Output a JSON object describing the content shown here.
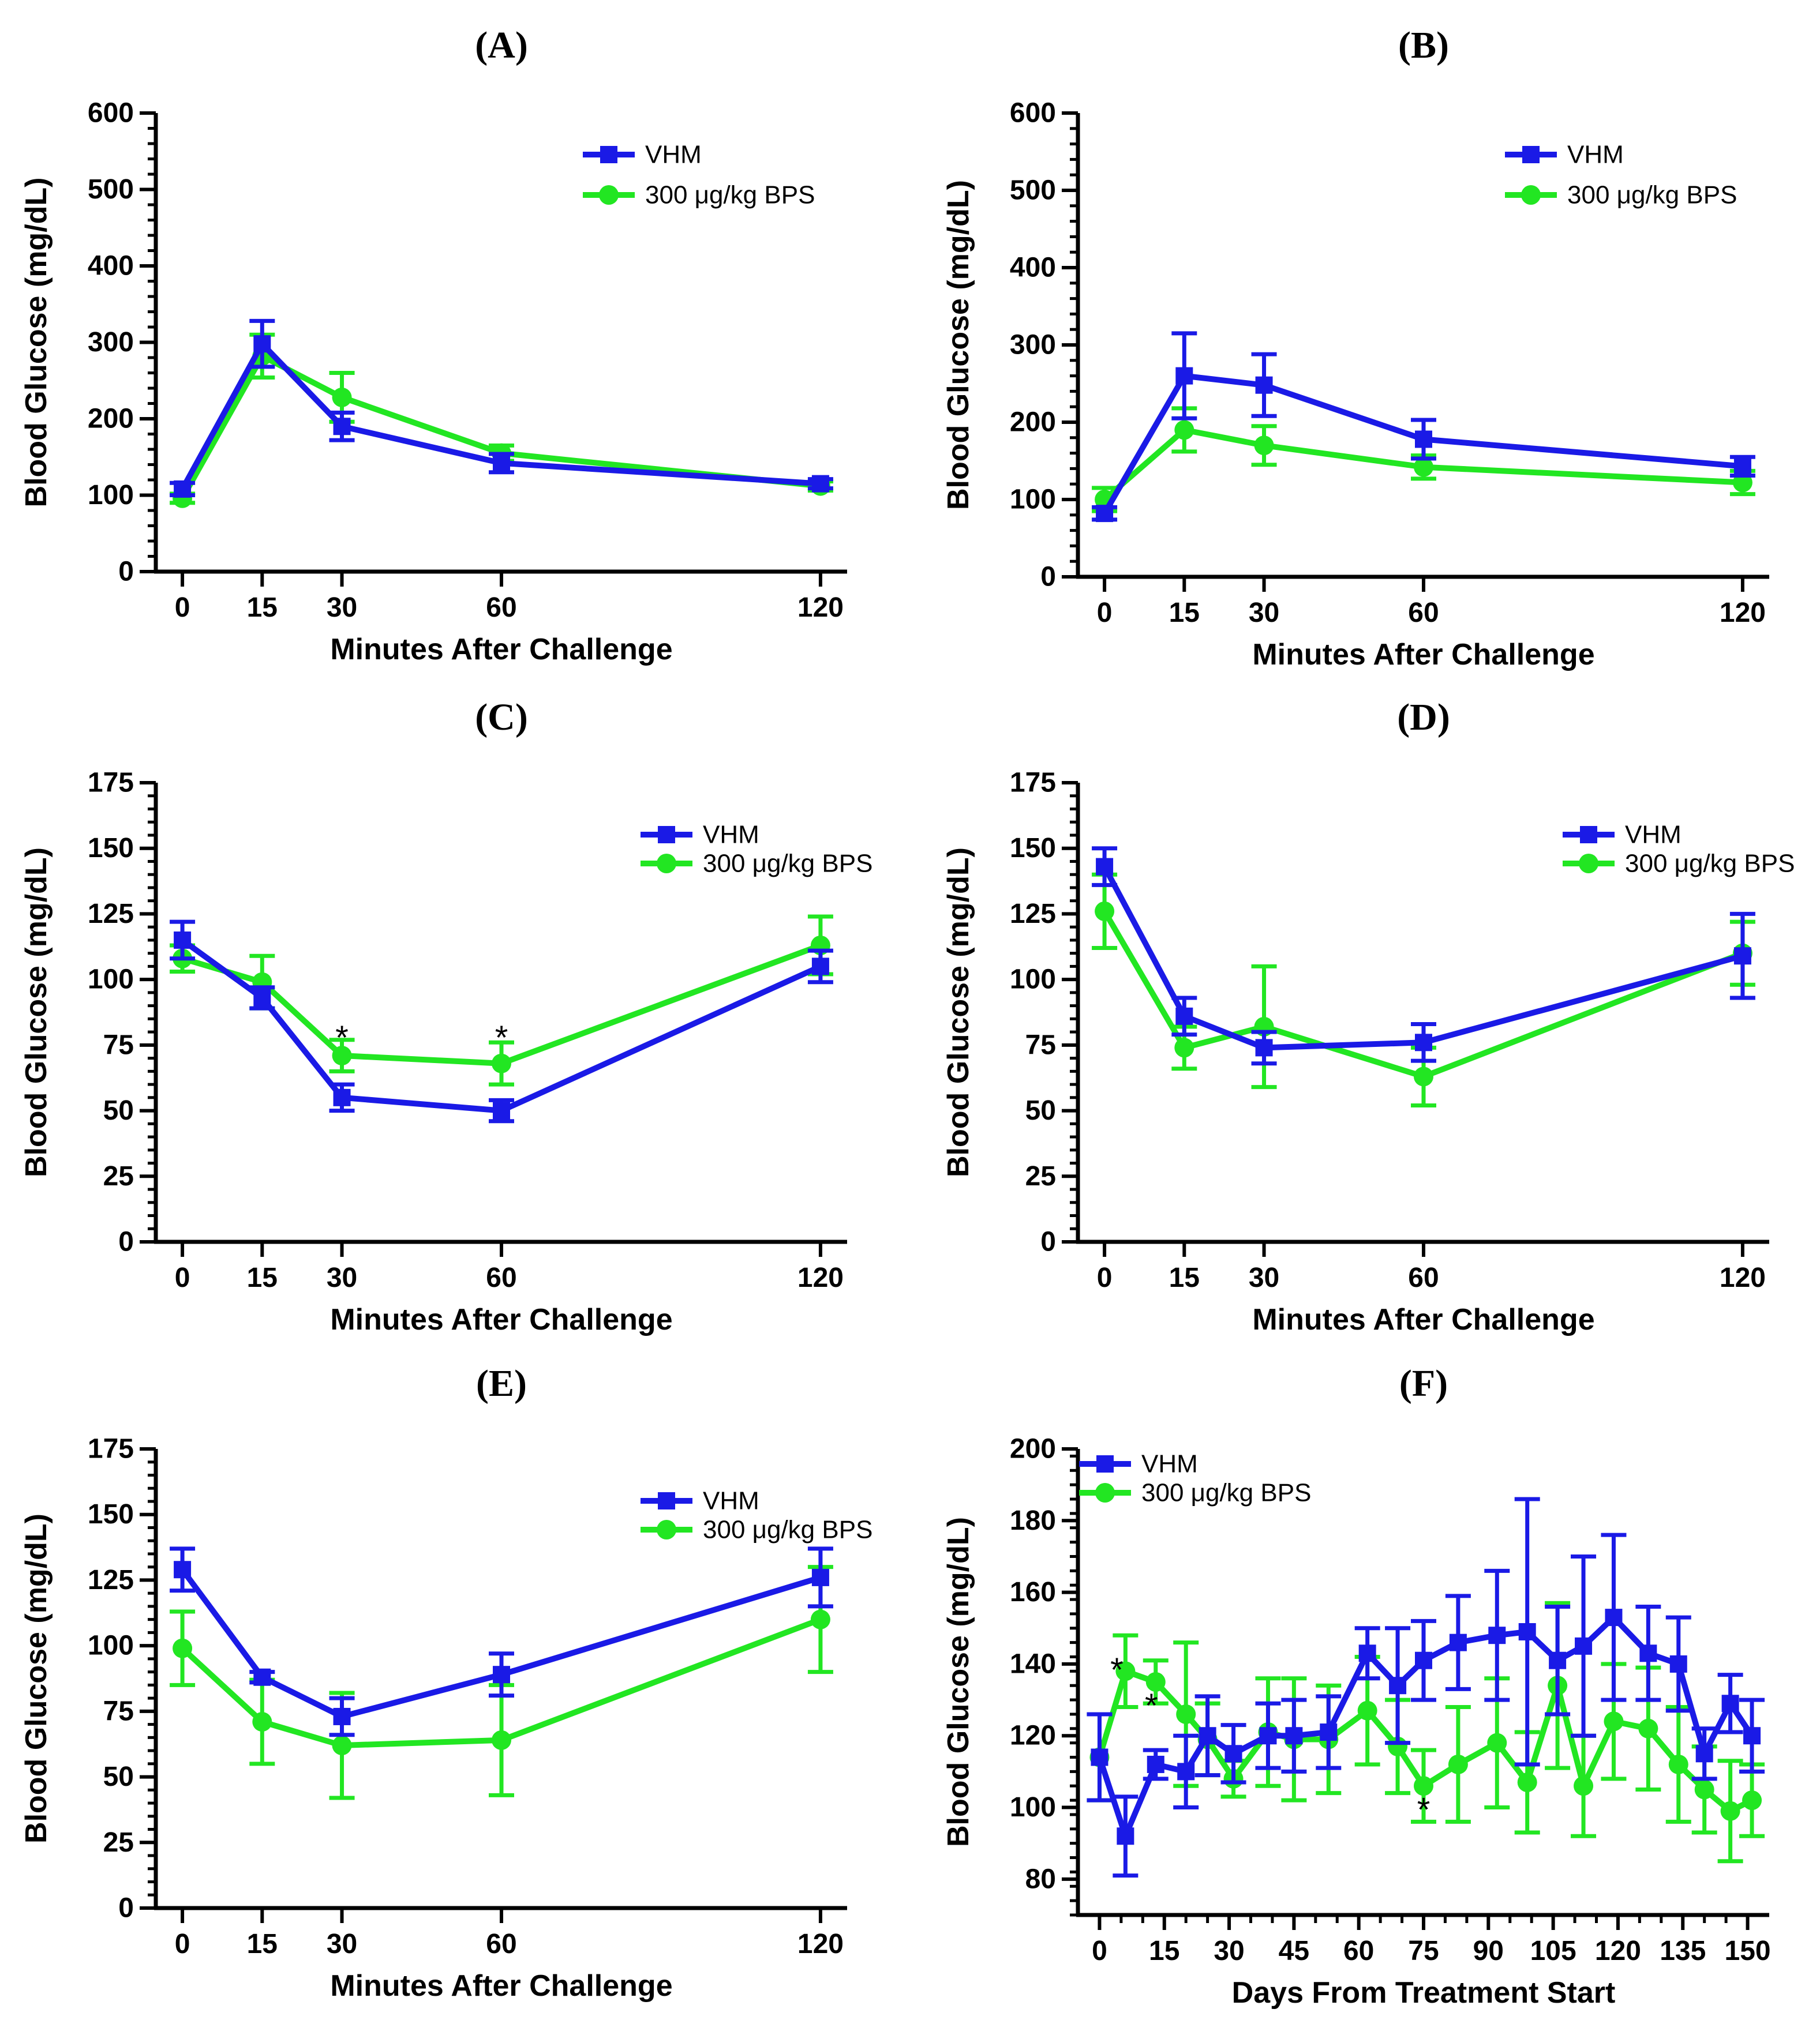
{
  "figure_title": "",
  "colors": {
    "vhm": "#1a1ae6",
    "bps": "#22e622",
    "axis": "#000000"
  },
  "chart_data": [
    {
      "id": "A",
      "label": "(A)",
      "type": "line",
      "xlabel": "Minutes After Challenge",
      "ylabel": "Blood Glucose (mg/dL)",
      "xlim": [
        -5,
        125
      ],
      "ylim": [
        0,
        600
      ],
      "xticks": [
        0,
        15,
        30,
        60,
        120
      ],
      "xtick_labels": [
        "0",
        "15",
        "30",
        "60",
        "120"
      ],
      "yticks": [
        0,
        100,
        200,
        300,
        400,
        500,
        600
      ],
      "ytick_labels": [
        "0",
        "100",
        "200",
        "300",
        "400",
        "500",
        "600"
      ],
      "yminor": 20,
      "legend": "top-right",
      "series": [
        {
          "name": "VHM",
          "marker": "square",
          "color": "#1a1ae6",
          "x": [
            0,
            15,
            30,
            60,
            120
          ],
          "y": [
            108,
            298,
            190,
            142,
            115
          ],
          "err": [
            8,
            30,
            18,
            12,
            6
          ]
        },
        {
          "name": "300 μg/kg BPS",
          "marker": "circle",
          "color": "#22e622",
          "x": [
            0,
            15,
            30,
            60,
            120
          ],
          "y": [
            96,
            282,
            228,
            155,
            112
          ],
          "err": [
            6,
            28,
            32,
            10,
            6
          ]
        }
      ],
      "annotations": []
    },
    {
      "id": "B",
      "label": "(B)",
      "type": "line",
      "xlabel": "Minutes After Challenge",
      "ylabel": "Blood Glucose (mg/dL)",
      "xlim": [
        -5,
        125
      ],
      "ylim": [
        0,
        600
      ],
      "xticks": [
        0,
        15,
        30,
        60,
        120
      ],
      "xtick_labels": [
        "0",
        "15",
        "30",
        "60",
        "120"
      ],
      "yticks": [
        0,
        100,
        200,
        300,
        400,
        500,
        600
      ],
      "ytick_labels": [
        "0",
        "100",
        "200",
        "300",
        "400",
        "500",
        "600"
      ],
      "yminor": 20,
      "legend": "top-right",
      "series": [
        {
          "name": "VHM",
          "marker": "square",
          "color": "#1a1ae6",
          "x": [
            0,
            15,
            30,
            60,
            120
          ],
          "y": [
            82,
            260,
            248,
            178,
            143
          ],
          "err": [
            8,
            55,
            40,
            25,
            12
          ]
        },
        {
          "name": "300 μg/kg BPS",
          "marker": "circle",
          "color": "#22e622",
          "x": [
            0,
            15,
            30,
            60,
            120
          ],
          "y": [
            100,
            190,
            170,
            142,
            122
          ],
          "err": [
            15,
            28,
            25,
            15,
            15
          ]
        }
      ],
      "annotations": []
    },
    {
      "id": "C",
      "label": "(C)",
      "type": "line",
      "xlabel": "Minutes After Challenge",
      "ylabel": "Blood Glucose (mg/dL)",
      "xlim": [
        -5,
        125
      ],
      "ylim": [
        0,
        175
      ],
      "xticks": [
        0,
        15,
        30,
        60,
        120
      ],
      "xtick_labels": [
        "0",
        "15",
        "30",
        "60",
        "120"
      ],
      "yticks": [
        0,
        25,
        50,
        75,
        100,
        125,
        150,
        175
      ],
      "ytick_labels": [
        "0",
        "25",
        "50",
        "75",
        "100",
        "125",
        "150",
        "175"
      ],
      "yminor": 5,
      "legend": "top-right",
      "series": [
        {
          "name": "VHM",
          "marker": "square",
          "color": "#1a1ae6",
          "x": [
            0,
            15,
            30,
            60,
            120
          ],
          "y": [
            115,
            93,
            55,
            50,
            105
          ],
          "err": [
            7,
            4,
            5,
            4,
            6
          ]
        },
        {
          "name": "300 μg/kg BPS",
          "marker": "circle",
          "color": "#22e622",
          "x": [
            0,
            15,
            30,
            60,
            120
          ],
          "y": [
            108,
            99,
            71,
            68,
            113
          ],
          "err": [
            5,
            10,
            6,
            8,
            11
          ]
        }
      ],
      "annotations": [
        {
          "text": "*",
          "x": 30,
          "y": 80
        },
        {
          "text": "*",
          "x": 60,
          "y": 80
        }
      ]
    },
    {
      "id": "D",
      "label": "(D)",
      "type": "line",
      "xlabel": "Minutes After Challenge",
      "ylabel": "Blood Glucose (mg/dL)",
      "xlim": [
        -5,
        125
      ],
      "ylim": [
        0,
        175
      ],
      "xticks": [
        0,
        15,
        30,
        60,
        120
      ],
      "xtick_labels": [
        "0",
        "15",
        "30",
        "60",
        "120"
      ],
      "yticks": [
        0,
        25,
        50,
        75,
        100,
        125,
        150,
        175
      ],
      "ytick_labels": [
        "0",
        "25",
        "50",
        "75",
        "100",
        "125",
        "150",
        "175"
      ],
      "yminor": 5,
      "legend": "top-right",
      "series": [
        {
          "name": "VHM",
          "marker": "square",
          "color": "#1a1ae6",
          "x": [
            0,
            15,
            30,
            60,
            120
          ],
          "y": [
            143,
            86,
            74,
            76,
            109
          ],
          "err": [
            7,
            7,
            6,
            7,
            16
          ]
        },
        {
          "name": "300 μg/kg BPS",
          "marker": "circle",
          "color": "#22e622",
          "x": [
            0,
            15,
            30,
            60,
            120
          ],
          "y": [
            126,
            74,
            82,
            63,
            110
          ],
          "err": [
            14,
            8,
            23,
            11,
            12
          ]
        }
      ],
      "annotations": []
    },
    {
      "id": "E",
      "label": "(E)",
      "type": "line",
      "xlabel": "Minutes After Challenge",
      "ylabel": "Blood Glucose (mg/dL)",
      "xlim": [
        -5,
        125
      ],
      "ylim": [
        0,
        175
      ],
      "xticks": [
        0,
        15,
        30,
        60,
        120
      ],
      "xtick_labels": [
        "0",
        "15",
        "30",
        "60",
        "120"
      ],
      "yticks": [
        0,
        25,
        50,
        75,
        100,
        125,
        150,
        175
      ],
      "ytick_labels": [
        "0",
        "25",
        "50",
        "75",
        "100",
        "125",
        "150",
        "175"
      ],
      "yminor": 5,
      "legend": "top-right",
      "series": [
        {
          "name": "VHM",
          "marker": "square",
          "color": "#1a1ae6",
          "x": [
            0,
            15,
            30,
            60,
            120
          ],
          "y": [
            129,
            88,
            73,
            89,
            126
          ],
          "err": [
            8,
            2,
            7,
            8,
            11
          ]
        },
        {
          "name": "300 μg/kg BPS",
          "marker": "circle",
          "color": "#22e622",
          "x": [
            0,
            15,
            30,
            60,
            120
          ],
          "y": [
            99,
            71,
            62,
            64,
            110
          ],
          "err": [
            14,
            16,
            20,
            21,
            20
          ]
        }
      ],
      "annotations": []
    },
    {
      "id": "F",
      "label": "(F)",
      "type": "line",
      "xlabel": "Days From Treatment Start",
      "ylabel": "Blood Glucose (mg/dL)",
      "xlim": [
        -5,
        155
      ],
      "ylim": [
        70,
        200
      ],
      "xticks": [
        0,
        15,
        30,
        45,
        60,
        75,
        90,
        105,
        120,
        135,
        150
      ],
      "xtick_labels": [
        "0",
        "15",
        "30",
        "45",
        "60",
        "75",
        "90",
        "105",
        "120",
        "135",
        "150"
      ],
      "xminor": 5,
      "yticks": [
        80,
        100,
        120,
        140,
        160,
        180,
        200
      ],
      "ytick_labels": [
        "80",
        "100",
        "120",
        "140",
        "160",
        "180",
        "200"
      ],
      "yminor": 4,
      "legend": "top-left",
      "series": [
        {
          "name": "VHM",
          "marker": "square",
          "color": "#1a1ae6",
          "x": [
            0,
            6,
            13,
            20,
            25,
            31,
            39,
            45,
            53,
            62,
            69,
            75,
            83,
            92,
            99,
            106,
            112,
            119,
            127,
            134,
            140,
            146,
            151
          ],
          "y": [
            114,
            92,
            112,
            110,
            120,
            115,
            120,
            120,
            121,
            143,
            134,
            141,
            146,
            148,
            149,
            141,
            145,
            153,
            143,
            140,
            115,
            129,
            120
          ],
          "err": [
            12,
            11,
            4,
            10,
            11,
            8,
            9,
            10,
            10,
            7,
            16,
            11,
            13,
            18,
            37,
            15,
            25,
            23,
            13,
            13,
            7,
            8,
            10
          ]
        },
        {
          "name": "300 μg/kg BPS",
          "marker": "circle",
          "color": "#22e622",
          "x": [
            0,
            6,
            13,
            20,
            25,
            31,
            39,
            45,
            53,
            62,
            69,
            75,
            83,
            92,
            99,
            106,
            112,
            119,
            127,
            134,
            140,
            146,
            151
          ],
          "y": [
            114,
            138,
            135,
            126,
            119,
            108,
            121,
            119,
            119,
            127,
            117,
            106,
            112,
            118,
            107,
            134,
            106,
            124,
            122,
            112,
            105,
            99,
            102
          ],
          "err": [
            12,
            10,
            6,
            20,
            10,
            5,
            15,
            17,
            15,
            15,
            13,
            10,
            16,
            18,
            14,
            23,
            14,
            16,
            17,
            16,
            12,
            14,
            10
          ]
        }
      ],
      "annotations": [
        {
          "text": "*",
          "x": 4,
          "y": 140
        },
        {
          "text": "*",
          "x": 12,
          "y": 130
        },
        {
          "text": "*",
          "x": 75,
          "y": 101
        }
      ]
    }
  ]
}
